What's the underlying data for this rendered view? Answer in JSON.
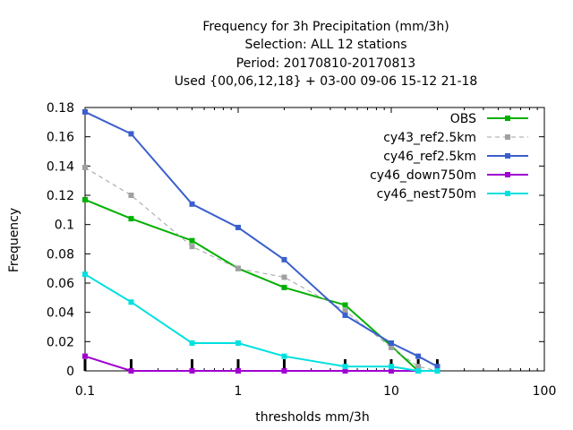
{
  "chart_data": {
    "type": "line",
    "title_lines": [
      "Frequency  for 3h Precipitation (mm/3h)",
      "Selection: ALL      12 stations",
      "Period: 20170810-20170813",
      "Used {00,06,12,18} + 03-00 09-06 15-12 21-18"
    ],
    "xlabel": "thresholds mm/3h",
    "ylabel": "Frequency",
    "xscale": "log",
    "xlim": [
      0.1,
      100
    ],
    "ylim": [
      0,
      0.18
    ],
    "x_ticks": [
      0.1,
      1,
      10,
      100
    ],
    "x_tick_labels": [
      "0.1",
      "1",
      "10",
      "100"
    ],
    "y_ticks": [
      0,
      0.02,
      0.04,
      0.06,
      0.08,
      0.1,
      0.12,
      0.14,
      0.16,
      0.18
    ],
    "y_tick_labels": [
      "0",
      "0.02",
      "0.04",
      "0.06",
      "0.08",
      "0.1",
      "0.12",
      "0.14",
      "0.16",
      "0.18"
    ],
    "threshold_markers": [
      0.1,
      0.2,
      0.5,
      1,
      2,
      5,
      10,
      15,
      20
    ],
    "legend_position": "top-right",
    "x": [
      0.1,
      0.2,
      0.5,
      1,
      2,
      5,
      10,
      15,
      20
    ],
    "series": [
      {
        "name": "OBS",
        "color": "#00b000",
        "dashed": false,
        "values": [
          0.117,
          0.104,
          0.089,
          0.07,
          0.057,
          0.045,
          0.017,
          0.0,
          0.0
        ]
      },
      {
        "name": "cy43_ref2.5km",
        "color": "#a0a0a0",
        "dashed": true,
        "values": [
          0.139,
          0.12,
          0.085,
          0.07,
          0.064,
          0.041,
          0.016,
          0.003,
          0.0
        ]
      },
      {
        "name": "cy46_ref2.5km",
        "color": "#3a5fcd",
        "dashed": false,
        "values": [
          0.177,
          0.162,
          0.114,
          0.098,
          0.076,
          0.038,
          0.019,
          0.01,
          0.003
        ]
      },
      {
        "name": "cy46_down750m",
        "color": "#a000d0",
        "dashed": false,
        "values": [
          0.01,
          0.0,
          0.0,
          0.0,
          0.0,
          0.0,
          0.0,
          0.0,
          0.0
        ]
      },
      {
        "name": "cy46_nest750m",
        "color": "#00e0e0",
        "dashed": false,
        "values": [
          0.066,
          0.047,
          0.019,
          0.019,
          0.01,
          0.003,
          0.003,
          0.0,
          0.0
        ]
      }
    ]
  }
}
